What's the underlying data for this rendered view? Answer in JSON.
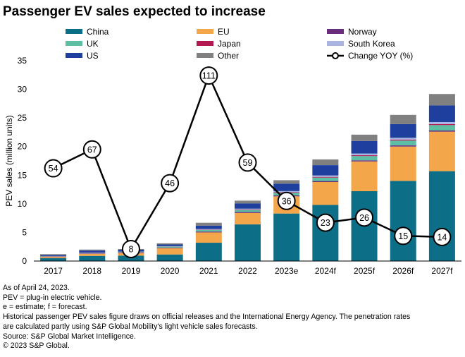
{
  "title": "Passenger EV sales expected to increase",
  "footnotes": [
    "As of April 24, 2023.",
    "PEV = plug-in electric vehicle.",
    "e = estimate; f = forecast.",
    "Historical passenger PEV sales figure draws on official releases and the International Energy Agency. The penetration rates",
    "are calculated partly using S&P Global Mobility's light vehicle sales forecasts.",
    "Source: S&P Global Market Intelligence.",
    "© 2023 S&P Global."
  ],
  "chart_data": {
    "type": "bar",
    "stacked": true,
    "title": "Passenger EV sales expected to increase",
    "xlabel": "",
    "ylabel": "PEV sales (million units)",
    "ylim": [
      0,
      35
    ],
    "yticks": [
      0,
      5,
      10,
      15,
      20,
      25,
      30,
      35
    ],
    "categories": [
      "2017",
      "2018",
      "2019",
      "2020",
      "2021",
      "2022",
      "2023e",
      "2024f",
      "2025f",
      "2026f",
      "2027f"
    ],
    "series": [
      {
        "name": "China",
        "color": "#0d6e87",
        "values": [
          0.5,
          0.9,
          0.95,
          1.15,
          3.2,
          6.4,
          8.3,
          9.8,
          12.2,
          14.0,
          15.7
        ]
      },
      {
        "name": "EU",
        "color": "#f4a64a",
        "values": [
          0.2,
          0.35,
          0.45,
          1.1,
          1.8,
          2.0,
          3.0,
          4.0,
          5.2,
          6.0,
          6.9
        ]
      },
      {
        "name": "Norway",
        "color": "#6a2c7d",
        "values": [
          0.05,
          0.08,
          0.08,
          0.1,
          0.15,
          0.17,
          0.17,
          0.18,
          0.19,
          0.2,
          0.2
        ]
      },
      {
        "name": "UK",
        "color": "#5cbfa4",
        "values": [
          0.05,
          0.06,
          0.07,
          0.17,
          0.3,
          0.35,
          0.45,
          0.6,
          0.75,
          0.85,
          0.95
        ]
      },
      {
        "name": "Japan",
        "color": "#b0184f",
        "values": [
          0.05,
          0.05,
          0.04,
          0.03,
          0.04,
          0.08,
          0.1,
          0.12,
          0.14,
          0.16,
          0.18
        ]
      },
      {
        "name": "South Korea",
        "color": "#a9b4e0",
        "values": [
          0.02,
          0.04,
          0.05,
          0.05,
          0.1,
          0.15,
          0.2,
          0.25,
          0.3,
          0.32,
          0.35
        ]
      },
      {
        "name": "US",
        "color": "#1e3f9e",
        "values": [
          0.2,
          0.35,
          0.33,
          0.3,
          0.6,
          0.9,
          1.3,
          1.8,
          2.2,
          2.4,
          2.9
        ]
      },
      {
        "name": "Other",
        "color": "#808080",
        "values": [
          0.13,
          0.17,
          0.13,
          0.2,
          0.5,
          0.5,
          0.6,
          1.0,
          1.1,
          1.6,
          2.0
        ]
      }
    ],
    "line_series": {
      "name": "Change YOY (%)",
      "color": "#000000",
      "values": [
        54,
        67,
        8,
        46,
        111,
        59,
        36,
        23,
        26,
        15,
        14
      ],
      "labels": [
        "54",
        "67",
        "8",
        "46",
        "111",
        "59",
        "36",
        "23",
        "26",
        "15",
        "14"
      ],
      "marker_positions": [
        16.2,
        19.5,
        2.1,
        13.6,
        32.4,
        17.2,
        10.5,
        6.7,
        7.6,
        4.4,
        4.2
      ]
    },
    "legend": {
      "placement": "top",
      "entries": [
        "China",
        "EU",
        "Norway",
        "UK",
        "Japan",
        "South Korea",
        "US",
        "Other",
        "Change YOY (%)"
      ]
    },
    "grid": false
  }
}
